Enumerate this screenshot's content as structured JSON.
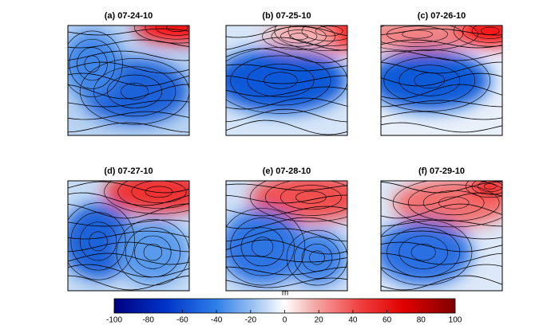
{
  "panels": [
    {
      "title": "(a) 07-24-10"
    },
    {
      "title": "(b) 07-25-10"
    },
    {
      "title": "(c) 07-26-10"
    },
    {
      "title": "(d) 07-27-10"
    },
    {
      "title": "(e) 07-28-10"
    },
    {
      "title": "(f) 07-29-10"
    }
  ],
  "colorbar": {
    "label": "m",
    "lim": [
      -100,
      100
    ],
    "ticks": [
      -100,
      -80,
      -60,
      -40,
      -20,
      0,
      20,
      40,
      60,
      80,
      100
    ]
  }
}
